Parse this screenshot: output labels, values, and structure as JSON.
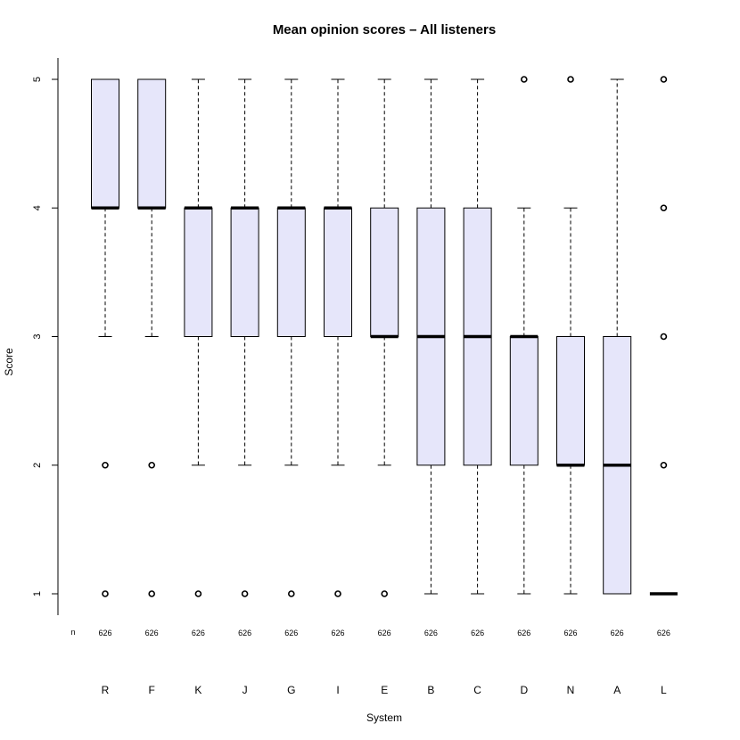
{
  "chart_data": {
    "type": "boxplot",
    "title": "Mean opinion scores – All listeners",
    "xlabel": "System",
    "ylabel": "Score",
    "ylim": [
      1,
      5
    ],
    "yticks": [
      "1",
      "2",
      "3",
      "4",
      "5"
    ],
    "grid": false,
    "legend": "none",
    "n_label": "n",
    "box_fill": "#E6E6FA",
    "stroke": "#000000",
    "categories": [
      "R",
      "F",
      "K",
      "J",
      "G",
      "I",
      "E",
      "B",
      "C",
      "D",
      "N",
      "A",
      "L"
    ],
    "n": [
      "626",
      "626",
      "626",
      "626",
      "626",
      "626",
      "626",
      "626",
      "626",
      "626",
      "626",
      "626",
      "626"
    ],
    "boxes": [
      {
        "name": "R",
        "whisker_low": 3,
        "q1": 4,
        "median": 4,
        "q3": 5,
        "whisker_high": 5,
        "outliers": [
          2,
          1
        ]
      },
      {
        "name": "F",
        "whisker_low": 3,
        "q1": 4,
        "median": 4,
        "q3": 5,
        "whisker_high": 5,
        "outliers": [
          2,
          1
        ]
      },
      {
        "name": "K",
        "whisker_low": 2,
        "q1": 3,
        "median": 4,
        "q3": 4,
        "whisker_high": 5,
        "outliers": [
          1
        ]
      },
      {
        "name": "J",
        "whisker_low": 2,
        "q1": 3,
        "median": 4,
        "q3": 4,
        "whisker_high": 5,
        "outliers": [
          1
        ]
      },
      {
        "name": "G",
        "whisker_low": 2,
        "q1": 3,
        "median": 4,
        "q3": 4,
        "whisker_high": 5,
        "outliers": [
          1
        ]
      },
      {
        "name": "I",
        "whisker_low": 2,
        "q1": 3,
        "median": 4,
        "q3": 4,
        "whisker_high": 5,
        "outliers": [
          1
        ]
      },
      {
        "name": "E",
        "whisker_low": 2,
        "q1": 3,
        "median": 3,
        "q3": 4,
        "whisker_high": 5,
        "outliers": [
          1
        ]
      },
      {
        "name": "B",
        "whisker_low": 1,
        "q1": 2,
        "median": 3,
        "q3": 4,
        "whisker_high": 5,
        "outliers": []
      },
      {
        "name": "C",
        "whisker_low": 1,
        "q1": 2,
        "median": 3,
        "q3": 4,
        "whisker_high": 5,
        "outliers": []
      },
      {
        "name": "D",
        "whisker_low": 1,
        "q1": 2,
        "median": 3,
        "q3": 3,
        "whisker_high": 4,
        "outliers": [
          5
        ]
      },
      {
        "name": "N",
        "whisker_low": 1,
        "q1": 2,
        "median": 2,
        "q3": 3,
        "whisker_high": 4,
        "outliers": [
          5
        ]
      },
      {
        "name": "A",
        "whisker_low": 1,
        "q1": 1,
        "median": 2,
        "q3": 3,
        "whisker_high": 5,
        "outliers": []
      },
      {
        "name": "L",
        "whisker_low": 1,
        "q1": 1,
        "median": 1,
        "q3": 1,
        "whisker_high": 1,
        "outliers": [
          5,
          4,
          3,
          2
        ]
      }
    ]
  }
}
